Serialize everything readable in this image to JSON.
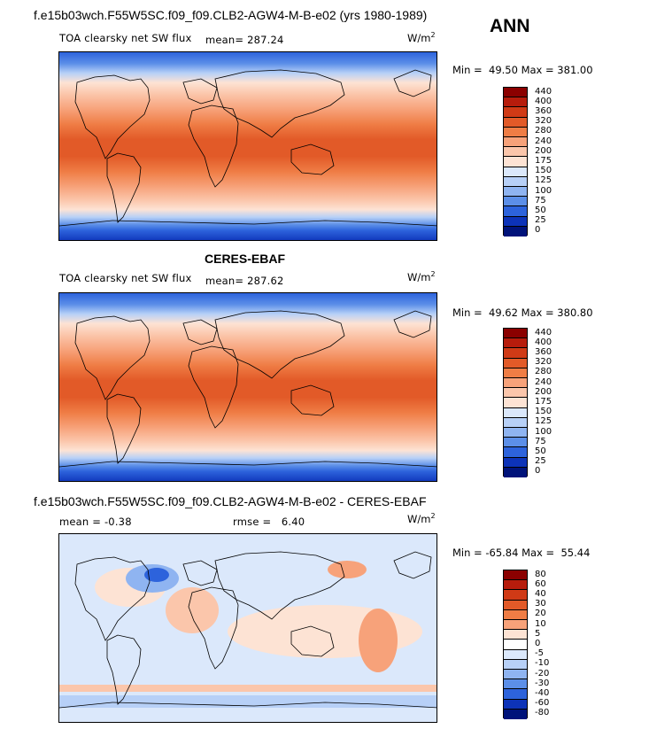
{
  "season": "ANN",
  "panel1": {
    "header": "f.e15b03wch.F55W5SC.f09_f09.CLB2-AGW4-M-B-e02 (yrs 1980-1989)",
    "variable": "TOA clearsky net SW flux",
    "mean": "mean= 287.24",
    "units": "W/m",
    "units_sup": "2",
    "minmax": "Min =  49.50 Max = 381.00",
    "colorbar_labels": [
      "440",
      "400",
      "360",
      "320",
      "280",
      "240",
      "200",
      "175",
      "150",
      "125",
      "100",
      "75",
      "50",
      "25",
      "0"
    ]
  },
  "panel2": {
    "header": "CERES-EBAF",
    "variable": "TOA clearsky net SW flux",
    "mean": "mean= 287.62",
    "units": "W/m",
    "units_sup": "2",
    "minmax": "Min =  49.62 Max = 380.80",
    "colorbar_labels": [
      "440",
      "400",
      "360",
      "320",
      "280",
      "240",
      "200",
      "175",
      "150",
      "125",
      "100",
      "75",
      "50",
      "25",
      "0"
    ]
  },
  "panel3": {
    "header": "f.e15b03wch.F55W5SC.f09_f09.CLB2-AGW4-M-B-e02 - CERES-EBAF",
    "mean": "mean =  -0.38",
    "rmse": "rmse =   6.40",
    "units": "W/m",
    "units_sup": "2",
    "minmax": "Min = -65.84 Max =  55.44",
    "colorbar_labels": [
      "80",
      "60",
      "40",
      "30",
      "20",
      "10",
      "5",
      "0",
      "-5",
      "-10",
      "-20",
      "-30",
      "-40",
      "-60",
      "-80"
    ]
  },
  "colors": {
    "abs_scale": [
      "#8b0000",
      "#b71c0c",
      "#d03a16",
      "#e25a28",
      "#ef7d45",
      "#f7a27a",
      "#fbc6ab",
      "#fde3d4",
      "#dbe8fb",
      "#b7d0f7",
      "#8fb4f1",
      "#5c8fe8",
      "#2d63dc",
      "#0d33b8",
      "#00137a"
    ],
    "diff_scale": [
      "#8b0000",
      "#b71c0c",
      "#d03a16",
      "#e25a28",
      "#ef7d45",
      "#f7a27a",
      "#fde3d4",
      "#ffffff",
      "#dbe8fb",
      "#b7d0f7",
      "#8fb4f1",
      "#5c8fe8",
      "#2d63dc",
      "#0d33b8",
      "#00137a"
    ]
  }
}
